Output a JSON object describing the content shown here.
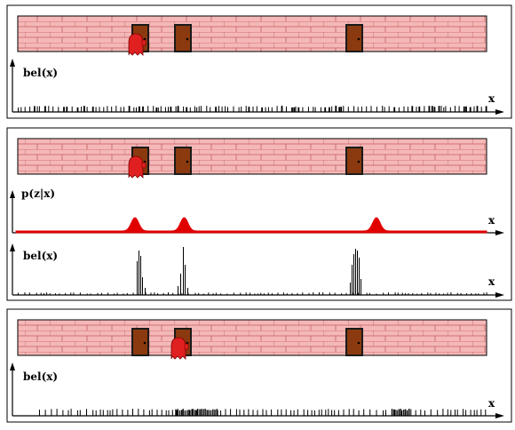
{
  "axis_labels": {
    "bel": "bel(x)",
    "pzx": "p(z|x)",
    "x": "x"
  },
  "colors": {
    "wall": "#f5b7b7",
    "brick_line": "#c06060",
    "door": "#8b3a0f",
    "door_frame": "#1a1a1a",
    "robot": "#e02020",
    "likelihood": "#e00000",
    "ink": "#000000"
  },
  "doors": [
    {
      "name": "door-1",
      "position": 0.25
    },
    {
      "name": "door-2",
      "position": 0.355
    },
    {
      "name": "door-3",
      "position": 0.765
    }
  ],
  "panels": [
    {
      "name": "panel-initial",
      "robot_position": 0.255,
      "likelihood": false,
      "belief": "uniform"
    },
    {
      "name": "panel-sensing",
      "robot_position": 0.255,
      "likelihood": true,
      "belief": "peaked-at-doors"
    },
    {
      "name": "panel-moved",
      "robot_position": 0.36,
      "likelihood": false,
      "belief": "shifted-uniform"
    }
  ]
}
